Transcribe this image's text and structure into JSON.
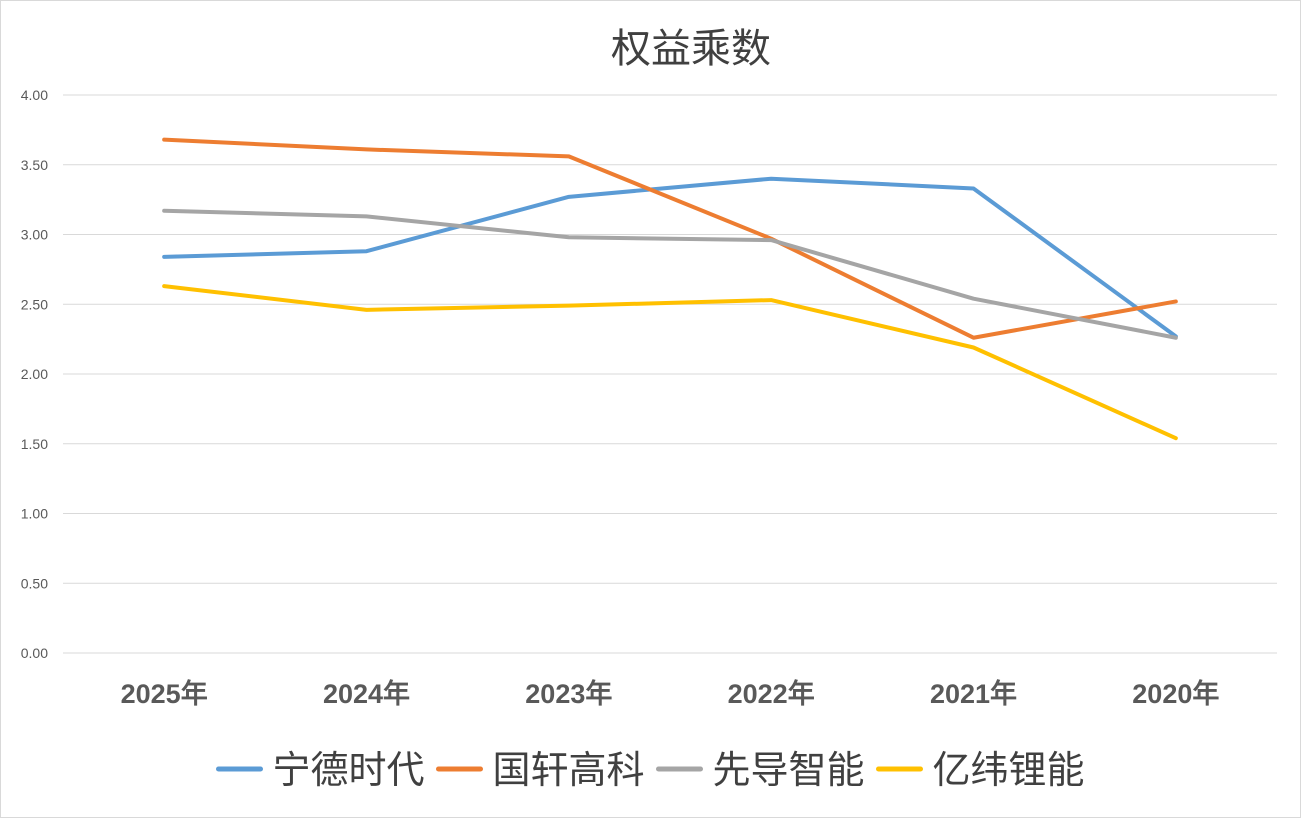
{
  "chart_data": {
    "type": "line",
    "title": "权益乘数",
    "categories": [
      "2025年",
      "2024年",
      "2023年",
      "2022年",
      "2021年",
      "2020年"
    ],
    "y_ticks": [
      "0.00",
      "0.50",
      "1.00",
      "1.50",
      "2.00",
      "2.50",
      "3.00",
      "3.50",
      "4.00"
    ],
    "ylim": [
      0,
      4
    ],
    "grid": true,
    "legend_position": "bottom",
    "series": [
      {
        "name": "宁德时代",
        "color": "#5b9bd5",
        "values": [
          2.84,
          2.88,
          3.27,
          3.4,
          3.33,
          2.27
        ]
      },
      {
        "name": "国轩高科",
        "color": "#ed7d31",
        "values": [
          3.68,
          3.61,
          3.56,
          2.97,
          2.26,
          2.52
        ]
      },
      {
        "name": "先导智能",
        "color": "#a5a5a5",
        "values": [
          3.17,
          3.13,
          2.98,
          2.96,
          2.54,
          2.26
        ]
      },
      {
        "name": "亿纬锂能",
        "color": "#ffc000",
        "values": [
          2.63,
          2.46,
          2.49,
          2.53,
          2.19,
          1.54
        ]
      }
    ]
  }
}
